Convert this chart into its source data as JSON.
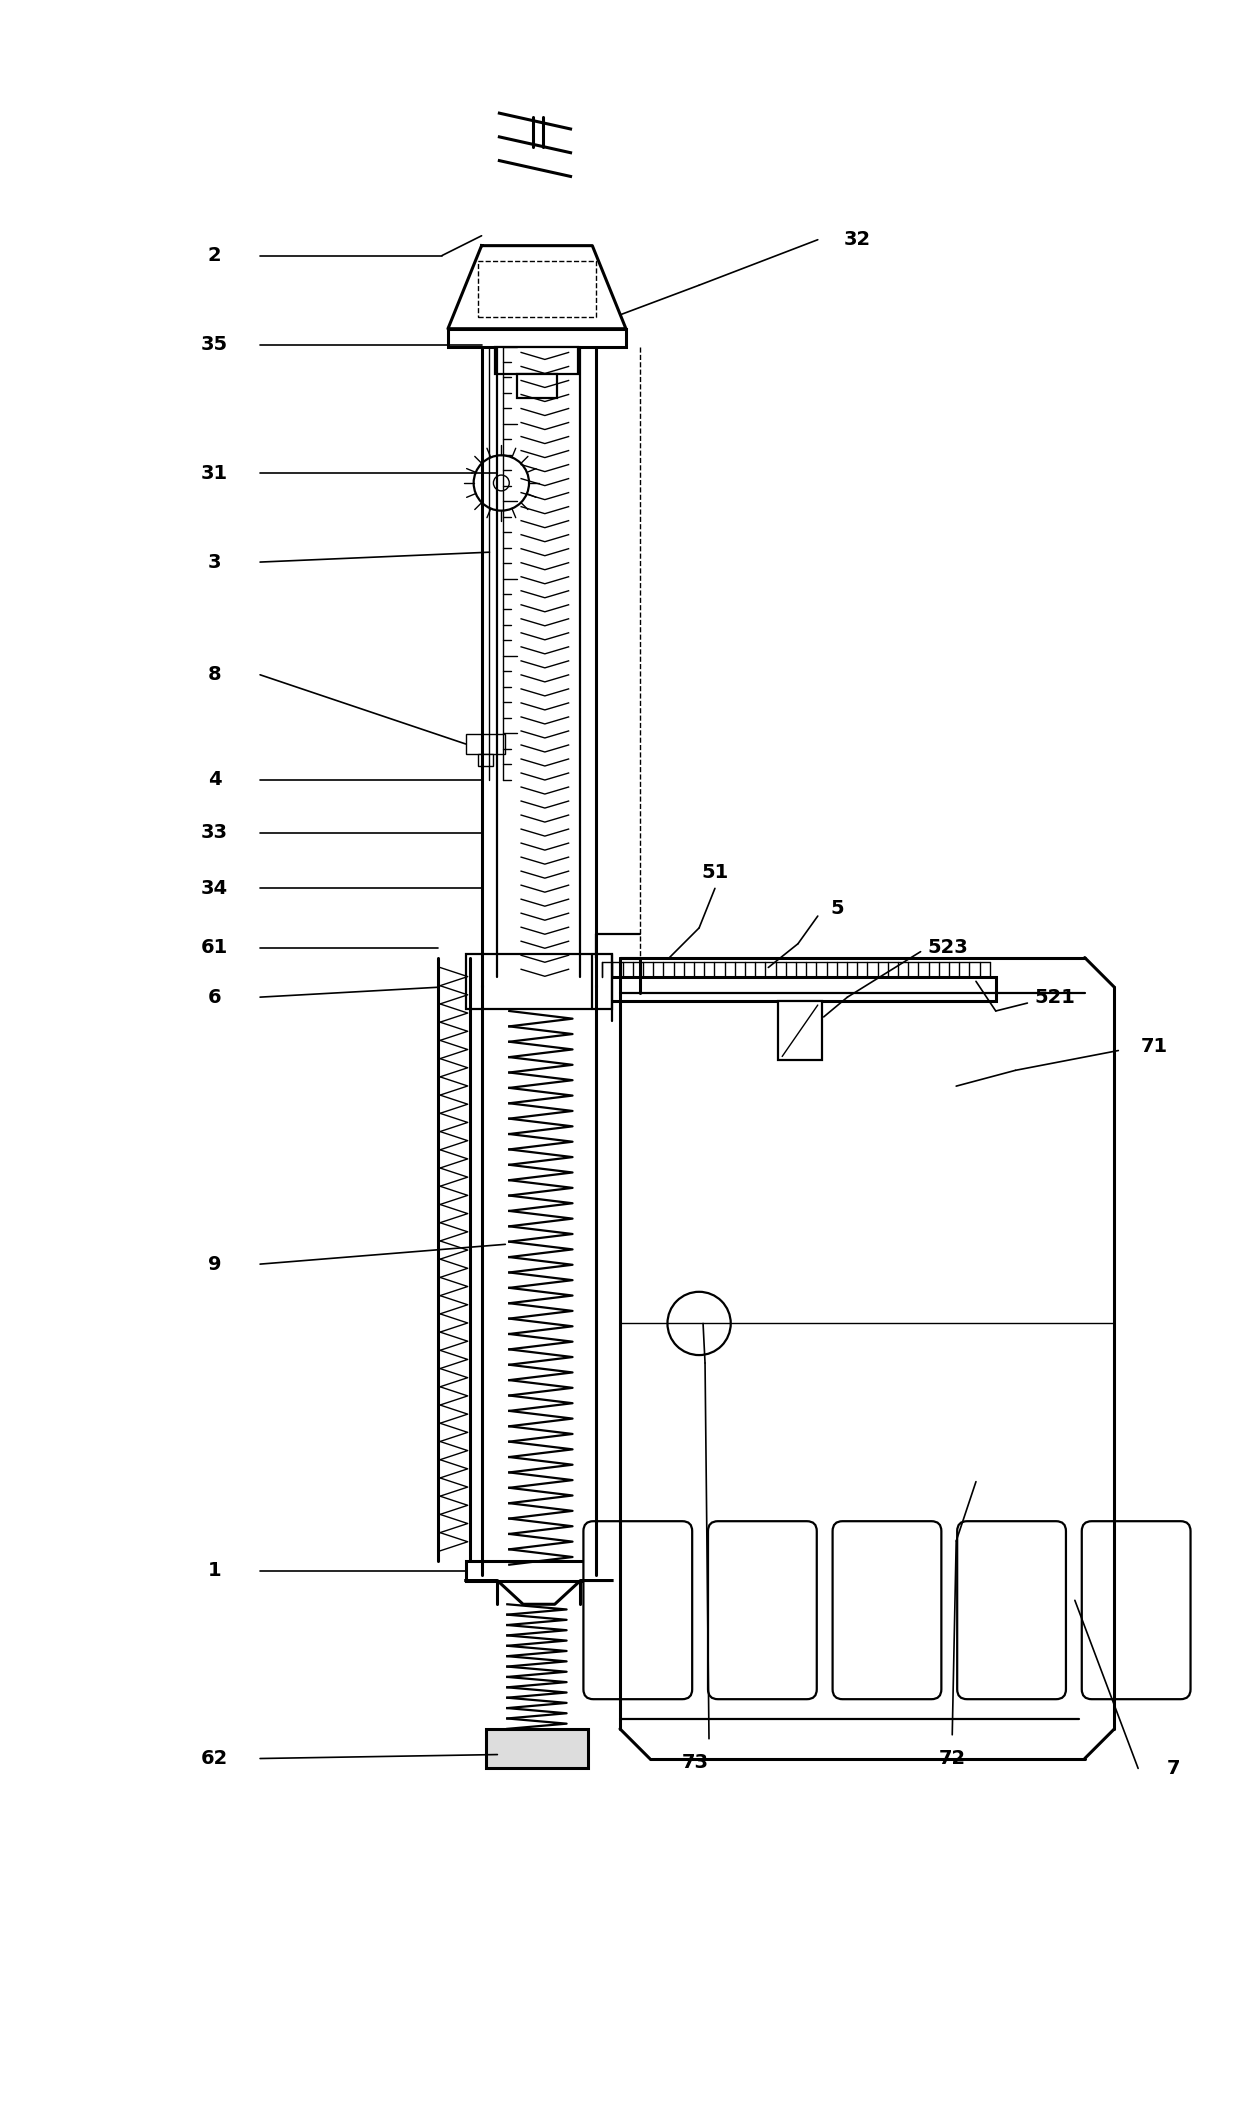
{
  "fig_width": 12.4,
  "fig_height": 21.07,
  "bg_color": "#ffffff",
  "line_color": "#000000"
}
